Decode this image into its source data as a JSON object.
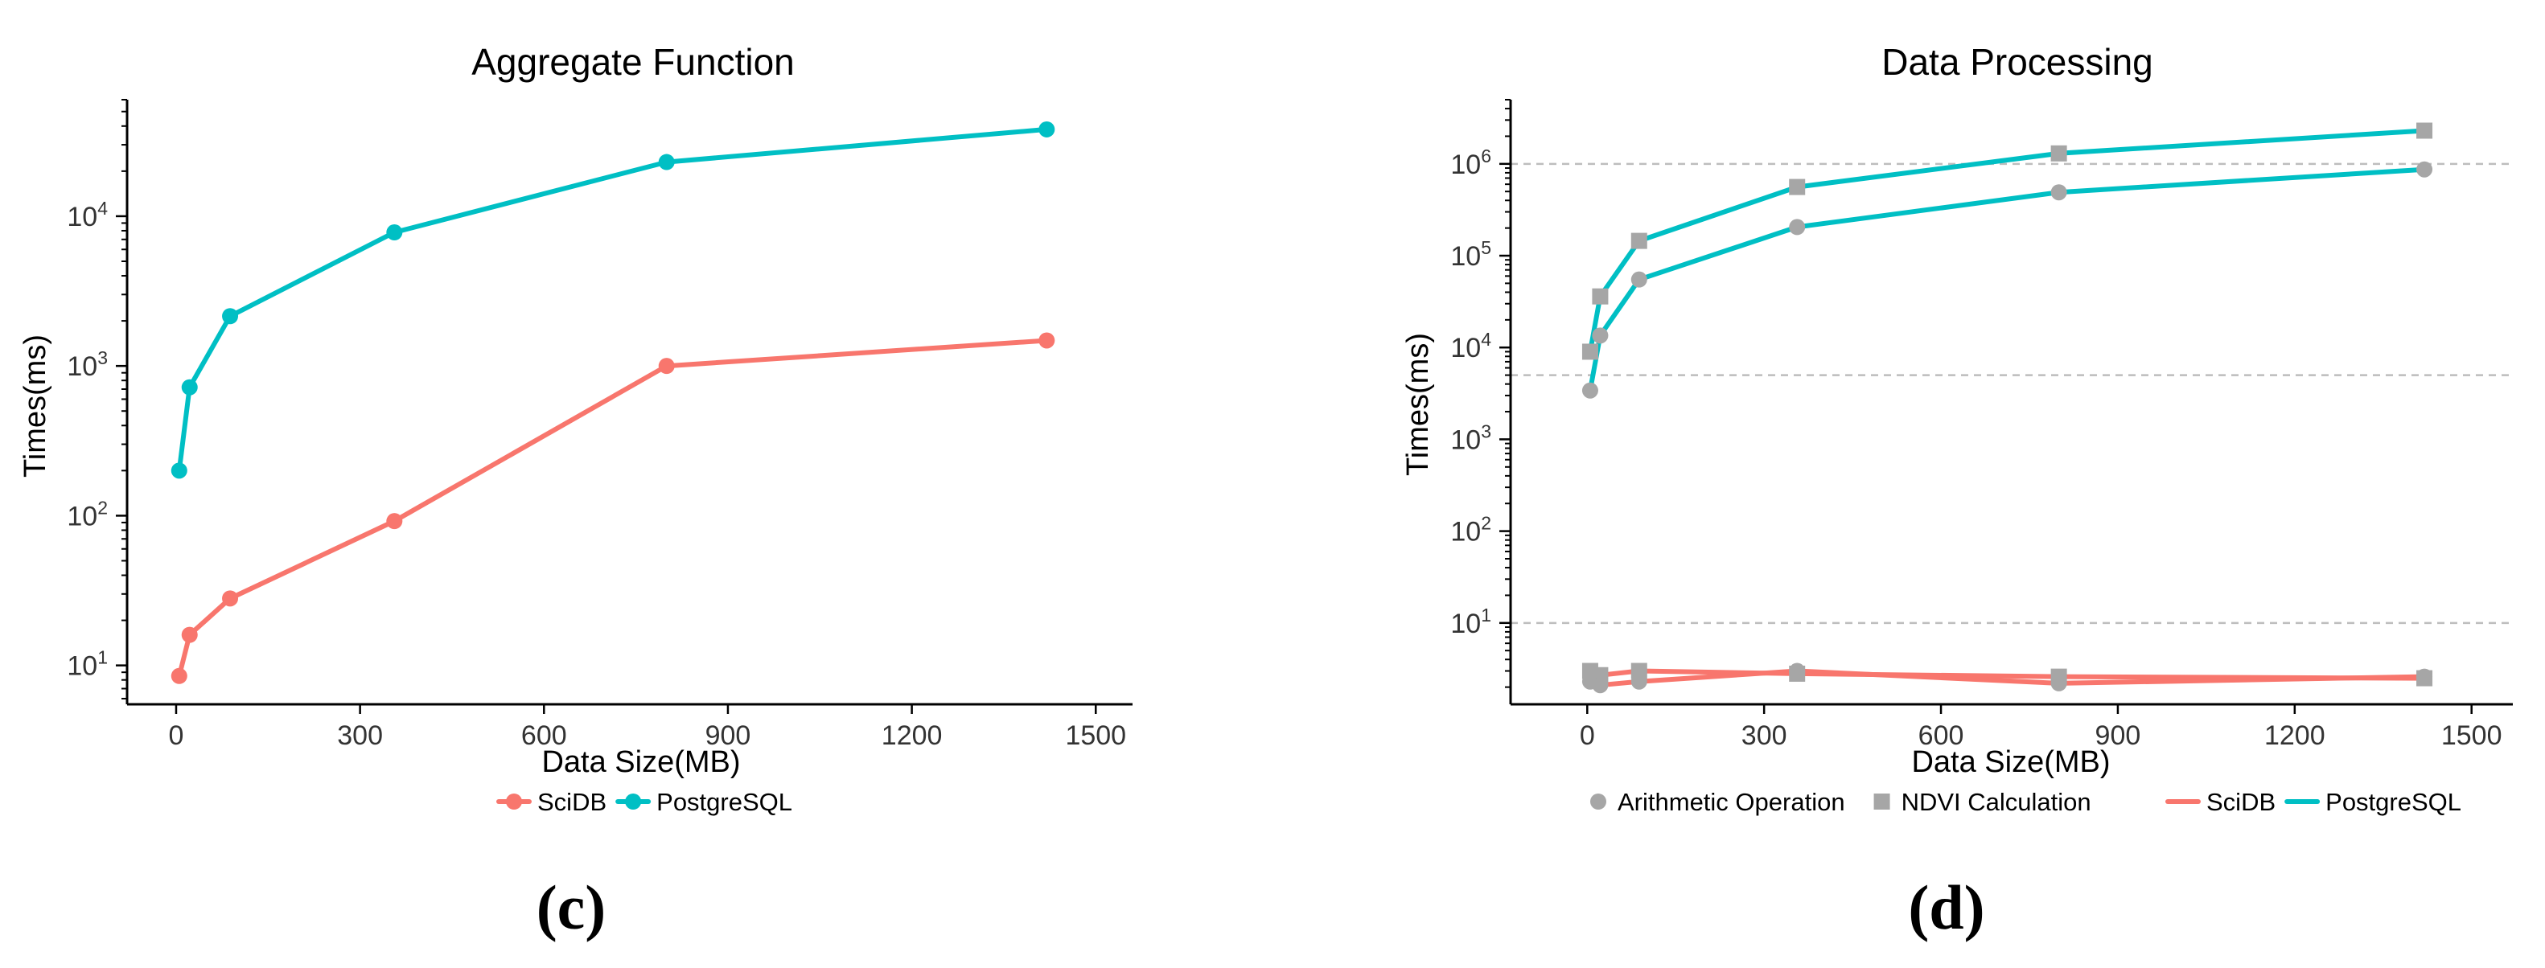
{
  "colors": {
    "SciDB": "#F8766D",
    "PostgreSQL": "#00BFC4",
    "marker_gray": "#A6A6A6",
    "reference_line": "#BDBDBD"
  },
  "chart_data": [
    {
      "type": "line",
      "panel_label": "(c)",
      "title": "Aggregate Function",
      "xlabel": "Data Size(MB)",
      "ylabel": "Times(ms)",
      "x_scale": "linear",
      "y_scale": "log",
      "xlim": [
        -80,
        1560
      ],
      "ylim": [
        5.5,
        60000
      ],
      "x_ticks": [
        0,
        300,
        600,
        900,
        1200,
        1500
      ],
      "x_tick_labels": [
        "0",
        "300",
        "600",
        "900",
        "1200",
        "1500"
      ],
      "y_ticks": [
        10,
        100,
        1000,
        10000
      ],
      "y_tick_labels": [
        {
          "base": "10",
          "exp": "1"
        },
        {
          "base": "10",
          "exp": "2"
        },
        {
          "base": "10",
          "exp": "3"
        },
        {
          "base": "10",
          "exp": "4"
        }
      ],
      "grid": false,
      "reference_lines": [],
      "legend_position": "bottom",
      "legend_color_entries": [
        "SciDB",
        "PostgreSQL"
      ],
      "legend_shape_entries": [],
      "series": [
        {
          "name": "SciDB",
          "shape": "circle",
          "x": [
            5,
            22,
            88,
            356,
            800,
            1420
          ],
          "y": [
            8.5,
            16,
            28,
            92,
            1000,
            1480
          ]
        },
        {
          "name": "PostgreSQL",
          "shape": "circle",
          "x": [
            5,
            22,
            88,
            356,
            800,
            1420
          ],
          "y": [
            200,
            720,
            2150,
            7800,
            23000,
            38000
          ]
        }
      ]
    },
    {
      "type": "line",
      "panel_label": "(d)",
      "title": "Data Processing",
      "xlabel": "Data Size(MB)",
      "ylabel": "Times(ms)",
      "x_scale": "linear",
      "y_scale": "log",
      "xlim": [
        -130,
        1570
      ],
      "ylim": [
        1.3,
        5000000
      ],
      "x_ticks": [
        0,
        300,
        600,
        900,
        1200,
        1500
      ],
      "x_tick_labels": [
        "0",
        "300",
        "600",
        "900",
        "1200",
        "1500"
      ],
      "y_ticks": [
        10,
        100,
        1000,
        10000,
        100000,
        1000000
      ],
      "y_tick_labels": [
        {
          "base": "10",
          "exp": "1"
        },
        {
          "base": "10",
          "exp": "2"
        },
        {
          "base": "10",
          "exp": "3"
        },
        {
          "base": "10",
          "exp": "4"
        },
        {
          "base": "10",
          "exp": "5"
        },
        {
          "base": "10",
          "exp": "6"
        }
      ],
      "grid": false,
      "reference_lines": [
        10,
        5000,
        1000000
      ],
      "legend_position": "bottom",
      "legend_shape_entries": [
        {
          "label": "Arithmetic Operation",
          "shape": "circle"
        },
        {
          "label": "NDVI Calculation",
          "shape": "square"
        }
      ],
      "legend_color_entries": [
        "SciDB",
        "PostgreSQL"
      ],
      "series": [
        {
          "name": "PostgreSQL NDVI Calculation",
          "color_key": "PostgreSQL",
          "shape": "square",
          "x": [
            5,
            22,
            88,
            356,
            800,
            1420
          ],
          "y": [
            9000,
            36000,
            145000,
            560000,
            1300000,
            2300000
          ]
        },
        {
          "name": "PostgreSQL Arithmetic Operation",
          "color_key": "PostgreSQL",
          "shape": "circle",
          "x": [
            5,
            22,
            88,
            356,
            800,
            1420
          ],
          "y": [
            3400,
            13500,
            55000,
            205000,
            490000,
            870000
          ]
        },
        {
          "name": "SciDB NDVI Calculation",
          "color_key": "SciDB",
          "shape": "square",
          "x": [
            5,
            22,
            88,
            356,
            800,
            1420
          ],
          "y": [
            3.0,
            2.7,
            3.0,
            2.8,
            2.6,
            2.5
          ]
        },
        {
          "name": "SciDB Arithmetic Operation",
          "color_key": "SciDB",
          "shape": "circle",
          "x": [
            5,
            22,
            88,
            356,
            800,
            1420
          ],
          "y": [
            2.3,
            2.1,
            2.3,
            3.0,
            2.2,
            2.6
          ]
        }
      ]
    }
  ]
}
